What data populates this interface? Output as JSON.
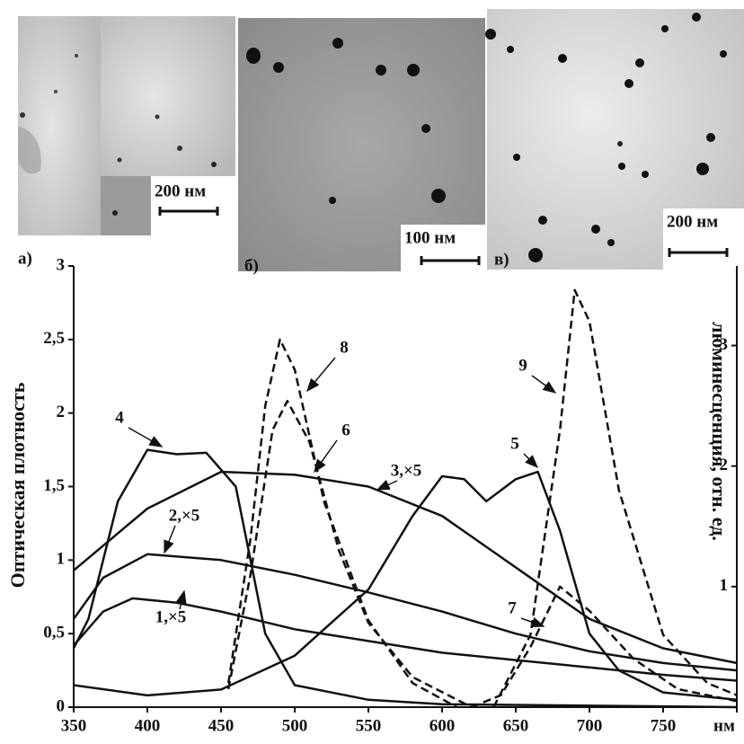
{
  "panels": [
    {
      "label": "а)",
      "scale": "200 нм"
    },
    {
      "label": "б)",
      "scale": "100 нм"
    },
    {
      "label": "в)",
      "scale": "200 нм"
    }
  ],
  "chart_data": {
    "type": "line",
    "ylabel": "Оптическая плотность",
    "y2label": "люминесценция, отн. ед.",
    "xlim": [
      350,
      800
    ],
    "xticks": [
      350,
      400,
      450,
      500,
      550,
      600,
      650,
      700,
      750,
      {
        "value": 800,
        "label": "нм"
      }
    ],
    "ylim": [
      0,
      3
    ],
    "yticks": [
      0,
      {
        "value": 0.5,
        "label": "0,5"
      },
      1,
      {
        "value": 1.5,
        "label": "1,5"
      },
      2,
      {
        "value": 2.5,
        "label": "2,5"
      },
      3
    ],
    "y2lim": [
      0,
      3.66
    ],
    "y2ticks": [
      1,
      2,
      3
    ],
    "series": [
      {
        "name": "1,×5",
        "color": "#111111",
        "dash": false,
        "x": [
          350,
          370,
          390,
          420,
          450,
          500,
          550,
          600,
          650,
          700,
          750,
          800
        ],
        "values": [
          0.42,
          0.65,
          0.74,
          0.71,
          0.65,
          0.53,
          0.45,
          0.37,
          0.32,
          0.27,
          0.22,
          0.18
        ]
      },
      {
        "name": "2,×5",
        "color": "#111111",
        "dash": false,
        "x": [
          350,
          370,
          400,
          450,
          500,
          550,
          600,
          650,
          700,
          750,
          800
        ],
        "values": [
          0.6,
          0.88,
          1.04,
          1.0,
          0.9,
          0.78,
          0.65,
          0.5,
          0.38,
          0.3,
          0.25
        ]
      },
      {
        "name": "3,×5",
        "color": "#111111",
        "dash": false,
        "x": [
          350,
          400,
          450,
          500,
          550,
          600,
          650,
          700,
          750,
          800
        ],
        "values": [
          0.93,
          1.35,
          1.6,
          1.58,
          1.5,
          1.3,
          0.95,
          0.6,
          0.4,
          0.3
        ]
      },
      {
        "name": "4",
        "color": "#111111",
        "dash": false,
        "x": [
          350,
          360,
          380,
          400,
          420,
          440,
          460,
          470,
          480,
          500,
          550,
          600,
          800
        ],
        "values": [
          0.4,
          0.6,
          1.4,
          1.75,
          1.72,
          1.73,
          1.5,
          1.0,
          0.5,
          0.15,
          0.05,
          0.02,
          0.0
        ]
      },
      {
        "name": "5",
        "color": "#111111",
        "dash": false,
        "x": [
          350,
          400,
          450,
          500,
          550,
          580,
          600,
          615,
          630,
          650,
          665,
          680,
          700,
          720,
          750,
          800
        ],
        "values": [
          0.15,
          0.08,
          0.12,
          0.35,
          0.8,
          1.3,
          1.57,
          1.55,
          1.4,
          1.55,
          1.6,
          1.2,
          0.5,
          0.25,
          0.1,
          0.05
        ]
      },
      {
        "name": "6",
        "color": "#111111",
        "dash": true,
        "axis": "y2",
        "x": [
          455,
          470,
          485,
          495,
          510,
          530,
          550,
          580,
          620
        ],
        "values": [
          0.15,
          1.1,
          2.3,
          2.54,
          2.2,
          1.3,
          0.7,
          0.25,
          0
        ]
      },
      {
        "name": "7",
        "color": "#111111",
        "dash": true,
        "axis": "y2",
        "x": [
          620,
          640,
          660,
          680,
          700,
          730,
          760,
          800
        ],
        "values": [
          0,
          0.1,
          0.5,
          1.0,
          0.8,
          0.4,
          0.15,
          0.05
        ]
      },
      {
        "name": "8",
        "color": "#111111",
        "dash": true,
        "axis": "y2",
        "x": [
          455,
          470,
          480,
          490,
          500,
          520,
          550,
          580,
          610
        ],
        "values": [
          0.2,
          1.4,
          2.5,
          3.05,
          2.8,
          1.7,
          0.72,
          0.2,
          0
        ]
      },
      {
        "name": "9",
        "color": "#111111",
        "dash": true,
        "axis": "y2",
        "x": [
          635,
          660,
          680,
          690,
          700,
          720,
          750,
          780,
          800
        ],
        "values": [
          0,
          0.6,
          2.3,
          3.46,
          3.2,
          1.8,
          0.6,
          0.2,
          0.1
        ]
      }
    ]
  }
}
